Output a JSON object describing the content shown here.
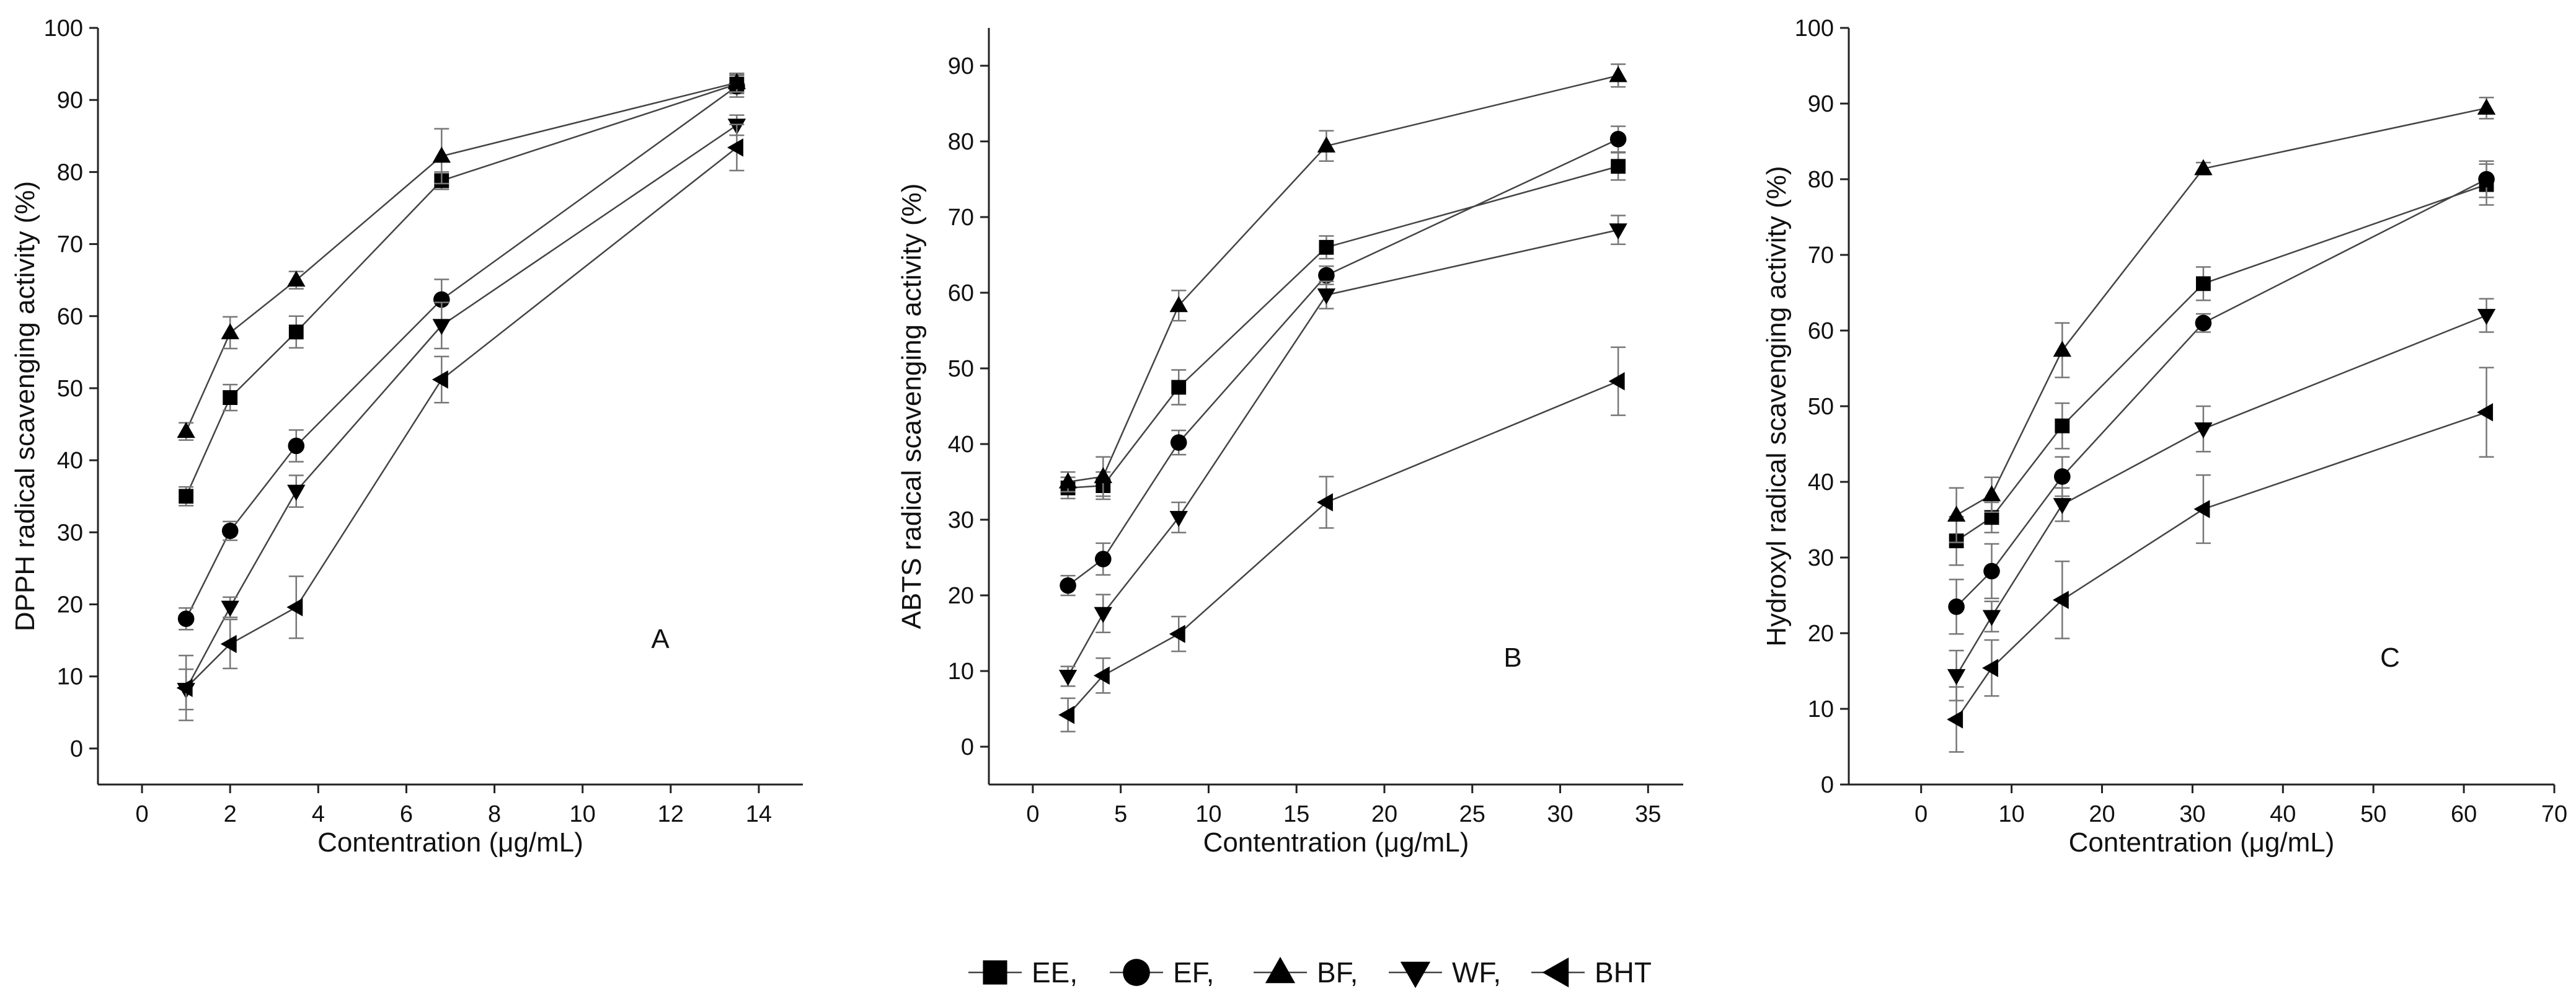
{
  "legend": {
    "items": [
      {
        "marker": "square",
        "label": "EE,"
      },
      {
        "marker": "circle",
        "label": "EF,"
      },
      {
        "marker": "triangle-up",
        "label": "BF,"
      },
      {
        "marker": "triangle-down",
        "label": "WF,"
      },
      {
        "marker": "triangle-left",
        "label": "BHT"
      }
    ]
  },
  "chart_data": [
    {
      "type": "line",
      "panel_label": "A",
      "xlabel": "Contentration (μg/mL)",
      "ylabel": "DPPH radical scavenging activity (%)",
      "xlim": [
        -1,
        15
      ],
      "ylim": [
        -5,
        100
      ],
      "xticks": [
        0,
        2,
        4,
        6,
        8,
        10,
        12,
        14
      ],
      "yticks": [
        0,
        10,
        20,
        30,
        40,
        50,
        60,
        70,
        80,
        90,
        100
      ],
      "x": [
        1,
        2,
        3.5,
        6.8,
        13.5
      ],
      "series": [
        {
          "name": "EE",
          "marker": "square",
          "values": [
            35,
            48.7,
            57.8,
            78.8,
            92.2
          ],
          "errors": [
            1.3,
            1.8,
            2.2,
            1.2,
            1.3
          ]
        },
        {
          "name": "EF",
          "marker": "circle",
          "values": [
            18,
            30.2,
            42,
            62.3,
            91.9
          ],
          "errors": [
            1.5,
            1.3,
            2.2,
            2.8,
            1.5
          ]
        },
        {
          "name": "BF",
          "marker": "triangle-up",
          "values": [
            44,
            57.7,
            65,
            82.2,
            92.4
          ],
          "errors": [
            1.2,
            2.2,
            1.2,
            3.8,
            1.3
          ]
        },
        {
          "name": "WF",
          "marker": "triangle-down",
          "values": [
            8.2,
            19.6,
            35.7,
            58.7,
            86.5
          ],
          "errors": [
            2.8,
            1.4,
            2.2,
            3.2,
            1.4
          ]
        },
        {
          "name": "BHT",
          "marker": "triangle-left",
          "values": [
            8.4,
            14.5,
            19.6,
            51.2,
            83.4
          ],
          "errors": [
            4.5,
            3.4,
            4.3,
            3.2,
            3.2
          ]
        }
      ]
    },
    {
      "type": "line",
      "panel_label": "B",
      "xlabel": "Contentration (μg/mL)",
      "ylabel": "ABTS radical scavenging activity (%)",
      "xlim": [
        -2.5,
        37
      ],
      "ylim": [
        -5,
        95
      ],
      "xticks": [
        0,
        5,
        10,
        15,
        20,
        25,
        30,
        35
      ],
      "yticks": [
        0,
        10,
        20,
        30,
        40,
        50,
        60,
        70,
        80,
        90
      ],
      "x": [
        2,
        4,
        8.3,
        16.7,
        33.3
      ],
      "series": [
        {
          "name": "EE",
          "marker": "square",
          "values": [
            34.2,
            34.5,
            47.5,
            66,
            76.7
          ],
          "errors": [
            1.4,
            1.8,
            2.3,
            1.5,
            1.8
          ]
        },
        {
          "name": "EF",
          "marker": "circle",
          "values": [
            21.3,
            24.8,
            40.2,
            62.3,
            80.3
          ],
          "errors": [
            1.3,
            2.1,
            1.6,
            1.2,
            1.7
          ]
        },
        {
          "name": "BF",
          "marker": "triangle-up",
          "values": [
            35,
            35.7,
            58.3,
            79.4,
            88.7
          ],
          "errors": [
            1.3,
            2.6,
            2,
            2,
            1.5
          ]
        },
        {
          "name": "WF",
          "marker": "triangle-down",
          "values": [
            9.3,
            17.6,
            30.3,
            59.7,
            68.3
          ],
          "errors": [
            1.3,
            2.5,
            2,
            1.8,
            1.9
          ]
        },
        {
          "name": "BHT",
          "marker": "triangle-left",
          "values": [
            4.2,
            9.4,
            14.9,
            32.3,
            48.3
          ],
          "errors": [
            2.2,
            2.3,
            2.3,
            3.4,
            4.5
          ]
        }
      ]
    },
    {
      "type": "line",
      "panel_label": "C",
      "xlabel": "Contentration (μg/mL)",
      "ylabel": "Hydroxyl radical scavenging activity (%)",
      "xlim": [
        -8,
        70
      ],
      "ylim": [
        0,
        100
      ],
      "xticks": [
        0,
        10,
        20,
        30,
        40,
        50,
        60,
        70
      ],
      "yticks": [
        0,
        10,
        20,
        30,
        40,
        50,
        60,
        70,
        80,
        90,
        100
      ],
      "x": [
        3.9,
        7.8,
        15.6,
        31.2,
        62.5
      ],
      "series": [
        {
          "name": "EE",
          "marker": "square",
          "values": [
            32.2,
            35.3,
            47.4,
            66.2,
            79.3
          ],
          "errors": [
            3.2,
            2,
            3,
            2.2,
            2.7
          ]
        },
        {
          "name": "EF",
          "marker": "circle",
          "values": [
            23.5,
            28.2,
            40.7,
            61,
            80
          ],
          "errors": [
            3.6,
            3.6,
            2.6,
            1.2,
            2.4
          ]
        },
        {
          "name": "BF",
          "marker": "triangle-up",
          "values": [
            35.6,
            38.3,
            57.4,
            81.4,
            89.4
          ],
          "errors": [
            3.6,
            2.3,
            3.6,
            0.8,
            1.4
          ]
        },
        {
          "name": "WF",
          "marker": "triangle-down",
          "values": [
            14.4,
            22.2,
            37,
            47,
            62
          ],
          "errors": [
            3.3,
            2,
            2.2,
            3,
            2.2
          ]
        },
        {
          "name": "BHT",
          "marker": "triangle-left",
          "values": [
            8.6,
            15.4,
            24.4,
            36.4,
            49.2
          ],
          "errors": [
            4.3,
            3.7,
            5.1,
            4.5,
            5.9
          ]
        }
      ]
    }
  ]
}
